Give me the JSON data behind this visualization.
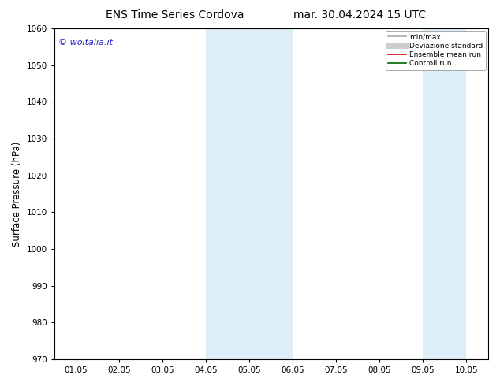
{
  "title_left": "ENS Time Series Cordova",
  "title_right": "mar. 30.04.2024 15 UTC",
  "ylabel": "Surface Pressure (hPa)",
  "ylim": [
    970,
    1060
  ],
  "yticks": [
    970,
    980,
    990,
    1000,
    1010,
    1020,
    1030,
    1040,
    1050,
    1060
  ],
  "xtick_labels": [
    "01.05",
    "02.05",
    "03.05",
    "04.05",
    "05.05",
    "06.05",
    "07.05",
    "08.05",
    "09.05",
    "10.05"
  ],
  "x_positions": [
    0,
    1,
    2,
    3,
    4,
    5,
    6,
    7,
    8,
    9
  ],
  "xlim": [
    -0.5,
    9.5
  ],
  "shaded_bands": [
    {
      "x_start": 3,
      "x_end": 5,
      "color": "#ddeef8"
    },
    {
      "x_start": 8,
      "x_end": 9,
      "color": "#ddeef8"
    }
  ],
  "watermark_text": "© woitalia.it",
  "watermark_color": "#2222cc",
  "background_color": "#ffffff",
  "legend_items": [
    {
      "label": "min/max",
      "color": "#aaaaaa",
      "lw": 1.2
    },
    {
      "label": "Deviazione standard",
      "color": "#cccccc",
      "lw": 5
    },
    {
      "label": "Ensemble mean run",
      "color": "#dd0000",
      "lw": 1.2
    },
    {
      "label": "Controll run",
      "color": "#006600",
      "lw": 1.2
    }
  ],
  "title_fontsize": 10,
  "tick_fontsize": 7.5,
  "ylabel_fontsize": 8.5,
  "watermark_fontsize": 8
}
